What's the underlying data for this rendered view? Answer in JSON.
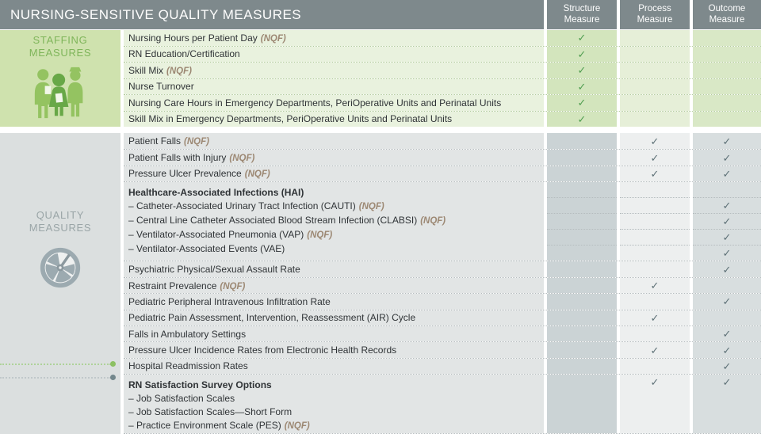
{
  "title": "NURSING-SENSITIVE QUALITY MEASURES",
  "columns": [
    "Structure Measure",
    "Process Measure",
    "Outcome Measure"
  ],
  "nqf_label": "(NQF)",
  "colors": {
    "header_bg": "#7e898c",
    "header_text": "#fdfdfd",
    "text": "#2f3336",
    "nqf": "#9c8873",
    "staffing_panel": "#cfe2ae",
    "staffing_label": "#7fb55a",
    "staffing_row": "#e9f2de",
    "staffing_col_s": "#d3e5bd",
    "staffing_col_p": "#e6efd8",
    "staffing_col_o": "#d9e8c6",
    "staffing_check": "#4f9d4f",
    "staffing_divider": "#b2cb9c",
    "quality_panel": "#dbdfdf",
    "quality_label": "#9aa5a7",
    "quality_row": "#e2e5e5",
    "quality_col_s": "#cbd3d5",
    "quality_col_p": "#edefef",
    "quality_col_o": "#d8dedf",
    "quality_check": "#5d7076",
    "quality_divider": "#b5bcbe",
    "callout_green": "#8cc063",
    "callout_green_line": "#aed29a",
    "callout_gray": "#73878c",
    "callout_gray_line": "#c0c8ca",
    "icon_green_light": "#94c361",
    "icon_green_dark": "#68a847",
    "icon_gray": "#9caab0",
    "icon_gray_dark": "#8b989e",
    "icon_gray_bg": "#eef0f0"
  },
  "sections": [
    {
      "id": "staffing",
      "label": "STAFFING MEASURES",
      "icon": "nurses-icon",
      "rows": [
        {
          "lines": [
            {
              "text": "Nursing Hours per Patient Day",
              "nqf": true
            }
          ],
          "checks": {
            "s": 1
          }
        },
        {
          "lines": [
            {
              "text": "RN Education/Certification"
            }
          ],
          "checks": {
            "s": 1
          }
        },
        {
          "lines": [
            {
              "text": "Skill Mix",
              "nqf": true
            }
          ],
          "checks": {
            "s": 1
          }
        },
        {
          "lines": [
            {
              "text": "Nurse Turnover"
            }
          ],
          "checks": {
            "s": 1
          }
        },
        {
          "lines": [
            {
              "text": "Nursing Care Hours in Emergency Departments, PeriOperative Units and Perinatal Units"
            }
          ],
          "checks": {
            "s": 1
          }
        },
        {
          "lines": [
            {
              "text": "Skill Mix in Emergency Departments, PeriOperative Units and Perinatal Units"
            }
          ],
          "checks": {
            "s": 1
          }
        }
      ]
    },
    {
      "id": "quality",
      "label": "QUALITY MEASURES",
      "icon": "gauge-icon",
      "rows": [
        {
          "lines": [
            {
              "text": "Patient Falls",
              "nqf": true
            }
          ],
          "checks": {
            "p": 1,
            "o": 1
          }
        },
        {
          "lines": [
            {
              "text": "Patient Falls with Injury",
              "nqf": true
            }
          ],
          "checks": {
            "p": 1,
            "o": 1
          }
        },
        {
          "lines": [
            {
              "text": "Pressure Ulcer Prevalence",
              "nqf": true
            }
          ],
          "checks": {
            "p": 1,
            "o": 1
          }
        },
        {
          "lines": [
            {
              "text": "Healthcare-Associated Infections (HAI)",
              "bold": true
            },
            {
              "text": "– Catheter-Associated Urinary Tract Infection (CAUTI)",
              "nqf": true
            },
            {
              "text": "– Central Line Catheter Associated Blood Stream Infection (CLABSI)",
              "nqf": true
            },
            {
              "text": "– Ventilator-Associated Pneumonia (VAP)",
              "nqf": true
            },
            {
              "text": "– Ventilator-Associated Events (VAE)"
            }
          ],
          "check_rows": [
            {},
            {
              "o": 1
            },
            {
              "o": 1
            },
            {
              "o": 1
            },
            {
              "o": 1
            }
          ]
        },
        {
          "lines": [
            {
              "text": "Psychiatric Physical/Sexual Assault Rate"
            }
          ],
          "checks": {
            "o": 1
          }
        },
        {
          "lines": [
            {
              "text": "Restraint Prevalence",
              "nqf": true
            }
          ],
          "checks": {
            "p": 1
          }
        },
        {
          "lines": [
            {
              "text": "Pediatric Peripheral Intravenous Infiltration Rate"
            }
          ],
          "checks": {
            "o": 1
          }
        },
        {
          "lines": [
            {
              "text": "Pediatric Pain Assessment, Intervention, Reassessment (AIR) Cycle"
            }
          ],
          "checks": {
            "p": 1
          }
        },
        {
          "lines": [
            {
              "text": "Falls in Ambulatory Settings"
            }
          ],
          "checks": {
            "o": 1
          }
        },
        {
          "lines": [
            {
              "text": "Pressure Ulcer Incidence Rates from Electronic Health Records"
            }
          ],
          "checks": {
            "p": 1,
            "o": 1
          }
        },
        {
          "lines": [
            {
              "text": "Hospital Readmission Rates"
            }
          ],
          "checks": {
            "o": 1
          }
        },
        {
          "lines": [
            {
              "text": "RN Satisfaction Survey Options",
              "bold": true
            },
            {
              "text": "– Job Satisfaction Scales"
            },
            {
              "text": "– Job Satisfaction Scales—Short Form"
            },
            {
              "text": "– Practice Environment Scale (PES)",
              "nqf": true
            }
          ],
          "check_rows": [
            {
              "p": 1,
              "o": 1
            },
            {},
            {},
            {}
          ]
        }
      ]
    }
  ]
}
